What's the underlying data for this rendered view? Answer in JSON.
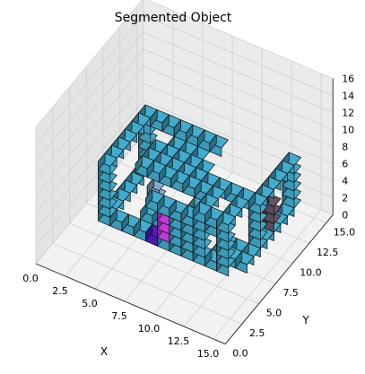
{
  "chart_data": {
    "type": "voxel",
    "title": "Segmented Object",
    "xlabel": "X",
    "ylabel": "Y",
    "zlabel": "",
    "x_ticks": [
      "0.0",
      "2.5",
      "5.0",
      "7.5",
      "10.0",
      "12.5",
      "15.0"
    ],
    "y_ticks": [
      "0.0",
      "2.5",
      "5.0",
      "7.5",
      "10.0",
      "12.5",
      "15.0"
    ],
    "z_ticks": [
      "0",
      "2",
      "4",
      "6",
      "8",
      "10",
      "12",
      "14",
      "16"
    ],
    "xlim": [
      0,
      16
    ],
    "ylim": [
      0,
      16
    ],
    "zlim": [
      0,
      16
    ],
    "grid": true,
    "colors": {
      "main": "#3a9ab8",
      "accent_magenta": "#c03ad8",
      "accent_purple": "#4a1ab0",
      "accent_steel": "#7896b8",
      "accent_dark": "#5a4a5a",
      "edge": "#111111"
    },
    "segments": [
      {
        "color": "main",
        "voxels": [
          [
            3,
            4,
            3
          ],
          [
            4,
            4,
            3
          ],
          [
            5,
            4,
            3
          ],
          [
            6,
            4,
            3
          ],
          [
            7,
            4,
            3
          ],
          [
            8,
            4,
            3
          ],
          [
            9,
            4,
            3
          ],
          [
            10,
            4,
            3
          ],
          [
            11,
            4,
            3
          ],
          [
            12,
            4,
            3
          ],
          [
            13,
            4,
            3
          ],
          [
            3,
            5,
            3
          ],
          [
            3,
            6,
            3
          ],
          [
            3,
            7,
            3
          ],
          [
            3,
            8,
            3
          ],
          [
            3,
            9,
            3
          ],
          [
            3,
            10,
            3
          ],
          [
            3,
            4,
            4
          ],
          [
            3,
            4,
            5
          ],
          [
            3,
            4,
            6
          ],
          [
            3,
            4,
            7
          ],
          [
            3,
            4,
            8
          ],
          [
            3,
            4,
            9
          ],
          [
            3,
            5,
            9
          ],
          [
            3,
            6,
            9
          ],
          [
            3,
            7,
            9
          ],
          [
            3,
            8,
            9
          ],
          [
            3,
            9,
            9
          ],
          [
            3,
            10,
            9
          ],
          [
            4,
            10,
            9
          ],
          [
            5,
            10,
            9
          ],
          [
            6,
            10,
            9
          ],
          [
            7,
            10,
            9
          ],
          [
            8,
            10,
            9
          ],
          [
            9,
            10,
            9
          ],
          [
            3,
            10,
            4
          ],
          [
            3,
            10,
            5
          ],
          [
            3,
            10,
            6
          ],
          [
            3,
            10,
            7
          ],
          [
            3,
            10,
            8
          ],
          [
            5,
            6,
            8
          ],
          [
            5,
            7,
            8
          ],
          [
            6,
            6,
            8
          ],
          [
            6,
            7,
            8
          ],
          [
            7,
            6,
            8
          ],
          [
            7,
            7,
            8
          ],
          [
            8,
            6,
            8
          ],
          [
            8,
            7,
            8
          ],
          [
            9,
            6,
            8
          ],
          [
            9,
            7,
            8
          ],
          [
            10,
            6,
            8
          ],
          [
            10,
            7,
            8
          ],
          [
            5,
            8,
            8
          ],
          [
            6,
            8,
            8
          ],
          [
            7,
            8,
            8
          ],
          [
            8,
            8,
            8
          ],
          [
            9,
            8,
            8
          ],
          [
            10,
            5,
            7
          ],
          [
            10,
            4,
            7
          ],
          [
            10,
            4,
            6
          ],
          [
            10,
            4,
            5
          ],
          [
            10,
            4,
            4
          ],
          [
            6,
            5,
            4
          ],
          [
            7,
            5,
            4
          ],
          [
            8,
            5,
            4
          ],
          [
            9,
            5,
            4
          ],
          [
            6,
            6,
            4
          ],
          [
            7,
            6,
            4
          ],
          [
            8,
            6,
            4
          ],
          [
            11,
            4,
            4
          ],
          [
            11,
            4,
            5
          ],
          [
            11,
            4,
            6
          ],
          [
            11,
            4,
            7
          ],
          [
            11,
            4,
            8
          ],
          [
            11,
            5,
            8
          ],
          [
            11,
            6,
            8
          ],
          [
            11,
            7,
            8
          ],
          [
            12,
            7,
            8
          ],
          [
            13,
            7,
            8
          ],
          [
            13,
            6,
            8
          ],
          [
            13,
            5,
            8
          ],
          [
            13,
            4,
            8
          ],
          [
            13,
            4,
            4
          ],
          [
            13,
            4,
            5
          ],
          [
            13,
            4,
            6
          ],
          [
            13,
            4,
            7
          ],
          [
            12,
            5,
            3
          ],
          [
            12,
            6,
            3
          ],
          [
            13,
            5,
            3
          ],
          [
            13,
            6,
            3
          ],
          [
            14,
            5,
            3
          ],
          [
            14,
            6,
            3
          ],
          [
            14,
            7,
            3
          ],
          [
            14,
            7,
            4
          ],
          [
            14,
            7,
            5
          ],
          [
            14,
            7,
            6
          ],
          [
            14,
            7,
            7
          ],
          [
            14,
            7,
            8
          ],
          [
            14,
            8,
            8
          ],
          [
            14,
            9,
            8
          ],
          [
            14,
            10,
            8
          ],
          [
            14,
            11,
            8
          ],
          [
            14,
            12,
            8
          ],
          [
            14,
            12,
            3
          ],
          [
            14,
            12,
            4
          ],
          [
            14,
            12,
            5
          ],
          [
            14,
            12,
            6
          ],
          [
            14,
            12,
            7
          ],
          [
            14,
            8,
            3
          ],
          [
            14,
            9,
            3
          ],
          [
            14,
            10,
            3
          ],
          [
            14,
            11,
            3
          ],
          [
            9,
            4,
            4
          ],
          [
            9,
            4,
            5
          ],
          [
            9,
            4,
            6
          ],
          [
            9,
            4,
            7
          ],
          [
            8,
            4,
            7
          ],
          [
            7,
            4,
            7
          ],
          [
            12,
            4,
            8
          ],
          [
            12,
            4,
            7
          ],
          [
            6,
            9,
            8
          ],
          [
            7,
            9,
            8
          ],
          [
            8,
            9,
            8
          ]
        ]
      },
      {
        "color": "accent_magenta",
        "voxels": [
          [
            8,
            4,
            4
          ],
          [
            8,
            4,
            5
          ],
          [
            8,
            4,
            6
          ]
        ]
      },
      {
        "color": "accent_purple",
        "voxels": [
          [
            7,
            4,
            3
          ]
        ]
      },
      {
        "color": "accent_steel",
        "voxels": [
          [
            6,
            6,
            5
          ],
          [
            6,
            6,
            6
          ]
        ]
      },
      {
        "color": "accent_dark",
        "voxels": [
          [
            14,
            9,
            4
          ],
          [
            14,
            9,
            5
          ],
          [
            14,
            9,
            6
          ]
        ]
      }
    ]
  }
}
